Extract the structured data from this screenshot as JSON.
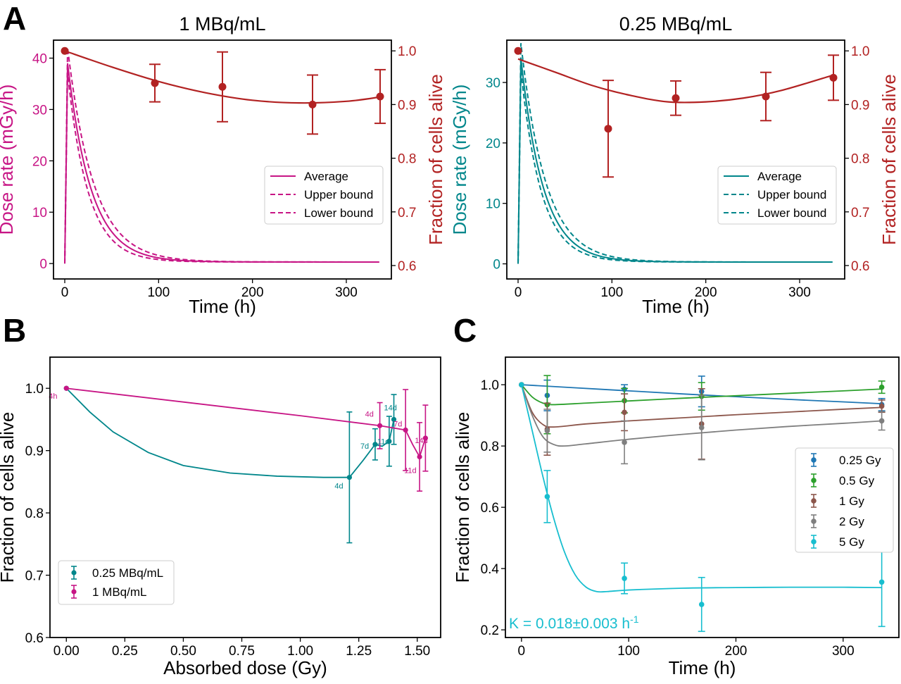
{
  "colors": {
    "magenta": "#c71585",
    "teal": "#00868b",
    "red": "#b22222",
    "blue": "#1f77b4",
    "green": "#2ca02c",
    "brown": "#8c564b",
    "gray": "#7f7f7f",
    "cyan": "#17becf"
  },
  "panel_labels": {
    "A": "A",
    "B": "B",
    "C": "C"
  },
  "chart_data": [
    {
      "id": "A1",
      "type": "line",
      "title": "1 MBq/mL",
      "xlabel": "Time (h)",
      "ylabel": "Dose rate (mGy/h)",
      "y2label": "Fraction of cells alive",
      "xlim": [
        -12,
        348
      ],
      "ylim": [
        -3,
        43.5
      ],
      "y2lim": [
        0.575,
        1.02
      ],
      "xticks": [
        0,
        100,
        200,
        300
      ],
      "yticks": [
        0,
        10,
        20,
        30,
        40
      ],
      "y2ticks": [
        0.6,
        0.7,
        0.8,
        0.9,
        1.0
      ],
      "xticklabels": [
        "0",
        "100",
        "200",
        "300"
      ],
      "yticklabels": [
        "0",
        "10",
        "20",
        "30",
        "40"
      ],
      "y2ticklabels": [
        "0.6",
        "0.7",
        "0.8",
        "0.9",
        "1.0"
      ],
      "dose_model": {
        "peak_time": 3,
        "tmax": 336,
        "average": {
          "peak": 39,
          "k": 0.04,
          "c": 0.3
        },
        "upper": {
          "peak": 42,
          "k": 0.036,
          "c": 0.3
        },
        "lower": {
          "peak": 37,
          "k": 0.045,
          "c": 0.3
        }
      },
      "legend": {
        "location": "right",
        "entries": [
          "Average",
          "Upper bound",
          "Lower bound"
        ]
      },
      "survival": {
        "x": [
          0,
          96,
          168,
          264,
          336
        ],
        "y": [
          1.0,
          0.94,
          0.933,
          0.9,
          0.915
        ],
        "err": [
          0.0,
          0.035,
          0.065,
          0.055,
          0.05
        ],
        "fit_x": [
          0,
          50,
          100,
          150,
          200,
          250,
          300,
          336
        ],
        "fit_y": [
          1.0,
          0.97,
          0.943,
          0.922,
          0.908,
          0.903,
          0.906,
          0.914
        ]
      }
    },
    {
      "id": "A2",
      "type": "line",
      "title": "0.25 MBq/mL",
      "xlabel": "Time (h)",
      "ylabel": "Dose rate (mGy/h)",
      "y2label": "Fraction of cells alive",
      "xlim": [
        -12,
        348
      ],
      "ylim": [
        -2.5,
        37
      ],
      "y2lim": [
        0.575,
        1.02
      ],
      "xticks": [
        0,
        100,
        200,
        300
      ],
      "yticks": [
        0,
        10,
        20,
        30
      ],
      "y2ticks": [
        0.6,
        0.7,
        0.8,
        0.9,
        1.0
      ],
      "xticklabels": [
        "0",
        "100",
        "200",
        "300"
      ],
      "yticklabels": [
        "0",
        "10",
        "20",
        "30"
      ],
      "y2ticklabels": [
        "0.6",
        "0.7",
        "0.8",
        "0.9",
        "1.0"
      ],
      "dose_model": {
        "peak_time": 3,
        "tmax": 336,
        "average": {
          "peak": 34,
          "k": 0.042,
          "c": 0.3
        },
        "upper": {
          "peak": 36.5,
          "k": 0.038,
          "c": 0.3
        },
        "lower": {
          "peak": 32,
          "k": 0.046,
          "c": 0.3
        }
      },
      "legend": {
        "location": "right",
        "entries": [
          "Average",
          "Upper bound",
          "Lower bound"
        ]
      },
      "survival": {
        "x": [
          0,
          96,
          168,
          264,
          336
        ],
        "y": [
          1.0,
          0.855,
          0.912,
          0.915,
          0.95
        ],
        "err": [
          0.0,
          0.09,
          0.032,
          0.045,
          0.042
        ],
        "fit_x": [
          0,
          40,
          80,
          120,
          160,
          200,
          240,
          280,
          336
        ],
        "fit_y": [
          0.985,
          0.96,
          0.935,
          0.917,
          0.905,
          0.905,
          0.912,
          0.926,
          0.955
        ]
      }
    },
    {
      "id": "B",
      "type": "line",
      "xlabel": "Absorbed dose (Gy)",
      "ylabel": "Fraction of cells alive",
      "xlim": [
        -0.07,
        1.6
      ],
      "ylim": [
        0.6,
        1.05
      ],
      "xticks": [
        0.0,
        0.25,
        0.5,
        0.75,
        1.0,
        1.25,
        1.5
      ],
      "yticks": [
        0.6,
        0.7,
        0.8,
        0.9,
        1.0
      ],
      "xticklabels": [
        "0.00",
        "0.25",
        "0.50",
        "0.75",
        "1.00",
        "1.25",
        "1.50"
      ],
      "yticklabels": [
        "0.6",
        "0.7",
        "0.8",
        "0.9",
        "1.0"
      ],
      "legend": {
        "location": "lower left",
        "entries": [
          "0.25 MBq/mL",
          "1 MBq/mL"
        ]
      },
      "series": [
        {
          "name": "0.25 MBq/mL",
          "x": [
            0.0,
            1.21,
            1.32,
            1.38,
            1.4
          ],
          "y": [
            1.0,
            0.857,
            0.91,
            0.915,
            0.95
          ],
          "err": [
            0.0,
            0.105,
            0.025,
            0.04,
            0.04
          ],
          "labels": [
            "",
            "4d",
            "7d",
            "11d",
            "14d"
          ],
          "fit_x": [
            0.0,
            0.1,
            0.2,
            0.35,
            0.5,
            0.7,
            0.9,
            1.1,
            1.21,
            1.27,
            1.32,
            1.35,
            1.38,
            1.4
          ],
          "fit_y": [
            1.0,
            0.962,
            0.93,
            0.897,
            0.876,
            0.864,
            0.859,
            0.857,
            0.857,
            0.885,
            0.91,
            0.907,
            0.915,
            0.95
          ]
        },
        {
          "name": "1 MBq/mL",
          "x": [
            0.0,
            1.34,
            1.45,
            1.51,
            1.535
          ],
          "y": [
            1.0,
            0.94,
            0.933,
            0.89,
            0.92
          ],
          "err": [
            0.0,
            0.037,
            0.065,
            0.055,
            0.053
          ],
          "labels": [
            "4h",
            "4d",
            "7d",
            "11d",
            "14d"
          ],
          "fit_x": [
            0.0,
            0.5,
            1.0,
            1.34,
            1.45,
            1.48,
            1.51,
            1.535
          ],
          "fit_y": [
            1.0,
            0.978,
            0.956,
            0.94,
            0.933,
            0.91,
            0.89,
            0.92
          ]
        }
      ]
    },
    {
      "id": "C",
      "type": "scatter",
      "xlabel": "Time (h)",
      "ylabel": "Fraction of cells alive",
      "xlim": [
        -15,
        352
      ],
      "ylim": [
        0.175,
        1.09
      ],
      "xticks": [
        0,
        100,
        200,
        300
      ],
      "yticks": [
        0.2,
        0.4,
        0.6,
        0.8,
        1.0
      ],
      "xticklabels": [
        "0",
        "100",
        "200",
        "300"
      ],
      "yticklabels": [
        "0.2",
        "0.4",
        "0.6",
        "0.8",
        "1.0"
      ],
      "legend": {
        "location": "center right",
        "entries": [
          "0.25 Gy",
          "0.5 Gy",
          "1 Gy",
          "2 Gy",
          "5 Gy"
        ]
      },
      "annotation": "K = 0.018±0.003 h",
      "annotation_superscript": "-1",
      "series": [
        {
          "name": "0.25 Gy",
          "x": [
            0,
            24,
            96,
            168,
            336
          ],
          "y": [
            1.0,
            0.965,
            0.985,
            0.978,
            0.935
          ],
          "err": [
            0.0,
            0.05,
            0.015,
            0.05,
            0.02
          ],
          "fit_x": [
            0,
            50,
            100,
            150,
            200,
            250,
            300,
            336
          ],
          "fit_y": [
            1.0,
            0.99,
            0.98,
            0.97,
            0.961,
            0.952,
            0.944,
            0.938
          ]
        },
        {
          "name": "0.5 Gy",
          "x": [
            0,
            24,
            96,
            168,
            336
          ],
          "y": [
            1.0,
            0.935,
            0.948,
            0.962,
            0.992
          ],
          "err": [
            0.0,
            0.095,
            0.04,
            0.045,
            0.02
          ],
          "fit_x": [
            0,
            10,
            20,
            30,
            60,
            100,
            150,
            200,
            250,
            300,
            336
          ],
          "fit_y": [
            1.0,
            0.96,
            0.94,
            0.935,
            0.94,
            0.947,
            0.956,
            0.964,
            0.972,
            0.98,
            0.986
          ]
        },
        {
          "name": "1 Gy",
          "x": [
            0,
            24,
            96,
            168,
            336
          ],
          "y": [
            1.0,
            0.855,
            0.91,
            0.872,
            0.93
          ],
          "err": [
            0.0,
            0.085,
            0.06,
            0.115,
            0.02
          ],
          "fit_x": [
            0,
            10,
            20,
            30,
            60,
            100,
            150,
            200,
            250,
            300,
            336
          ],
          "fit_y": [
            1.0,
            0.91,
            0.87,
            0.862,
            0.872,
            0.882,
            0.892,
            0.902,
            0.911,
            0.92,
            0.926
          ]
        },
        {
          "name": "2 Gy",
          "x": [
            0,
            24,
            96,
            168,
            336
          ],
          "y": [
            1.0,
            0.85,
            0.812,
            0.86,
            0.882
          ],
          "err": [
            0.0,
            0.07,
            0.07,
            0.105,
            0.03
          ],
          "fit_x": [
            0,
            10,
            20,
            30,
            40,
            60,
            100,
            150,
            200,
            250,
            300,
            336
          ],
          "fit_y": [
            1.0,
            0.9,
            0.83,
            0.805,
            0.8,
            0.807,
            0.822,
            0.838,
            0.852,
            0.864,
            0.874,
            0.882
          ]
        },
        {
          "name": "5 Gy",
          "x": [
            0,
            24,
            96,
            168,
            336
          ],
          "y": [
            1.0,
            0.635,
            0.368,
            0.283,
            0.356
          ],
          "err": [
            0.0,
            0.085,
            0.05,
            0.088,
            0.145
          ],
          "fit_x": [
            0,
            10,
            20,
            30,
            40,
            50,
            60,
            70,
            80,
            100,
            150,
            200,
            250,
            300,
            336
          ],
          "fit_y": [
            1.0,
            0.85,
            0.7,
            0.565,
            0.455,
            0.38,
            0.34,
            0.325,
            0.325,
            0.33,
            0.336,
            0.338,
            0.339,
            0.339,
            0.338
          ]
        }
      ]
    }
  ]
}
